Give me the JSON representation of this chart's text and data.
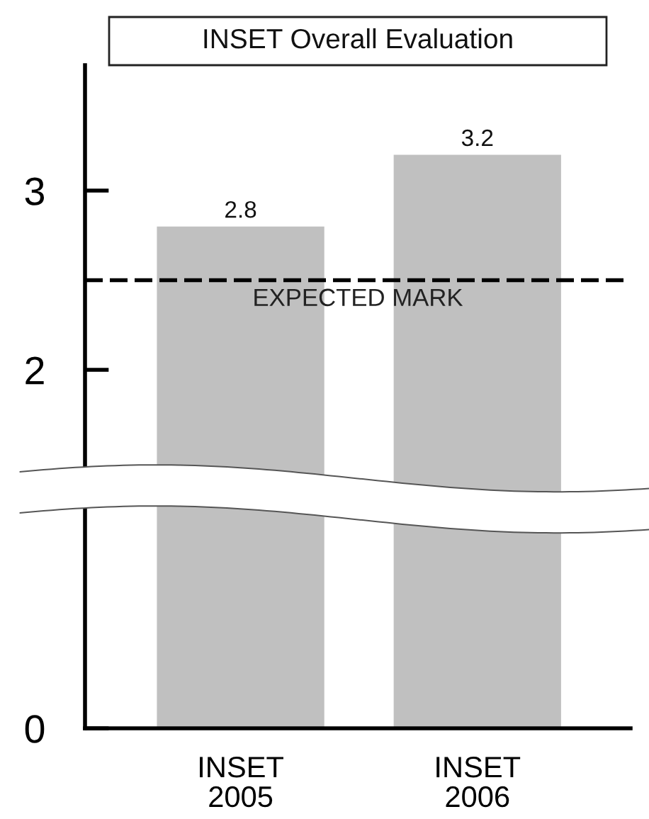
{
  "chart_data": {
    "type": "bar",
    "title": "INSET Overall Evaluation",
    "categories": [
      "INSET\n2005",
      "INSET\n2006"
    ],
    "values": [
      2.8,
      3.2
    ],
    "color": "#c0c0c0",
    "ylim": [
      0,
      3.7
    ],
    "yticks": [
      0,
      2,
      3
    ],
    "data_labels": true,
    "ref_lines": [
      {
        "axis": "y",
        "value": 2.5,
        "label": "EXPECTED MARK",
        "color": "#000000",
        "line_style": "dashed"
      }
    ]
  }
}
